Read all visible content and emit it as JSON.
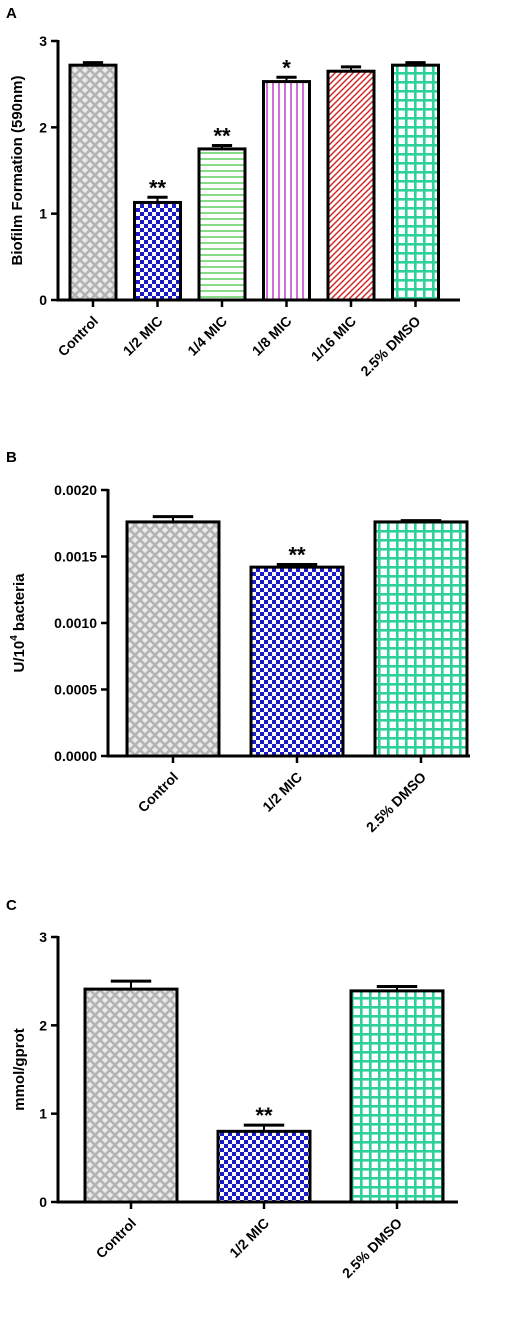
{
  "chart_data": [
    {
      "panel": "A",
      "type": "bar",
      "ylabel": "Biofilm Formation (590nm)",
      "ylim": [
        0,
        3
      ],
      "yticks": [
        "0",
        "1",
        "2",
        "3"
      ],
      "categories": [
        "Control",
        "1/2 MIC",
        "1/4 MIC",
        "1/8 MIC",
        "1/16 MIC",
        "2.5% DMSO"
      ],
      "values": [
        2.72,
        1.13,
        1.75,
        2.53,
        2.65,
        2.72
      ],
      "errors": [
        0.03,
        0.06,
        0.04,
        0.05,
        0.05,
        0.03
      ],
      "significance": [
        "",
        "**",
        "**",
        "*",
        "",
        ""
      ],
      "patterns": [
        "diamond-gray",
        "checker-blue",
        "hstripe-green",
        "vstripe-magenta",
        "diagonal-red",
        "grid-teal"
      ]
    },
    {
      "panel": "B",
      "type": "bar",
      "ylabel": "U/10",
      "ylabel_sup": "4",
      "ylabel_suffix": " bacteria",
      "ylim": [
        0,
        0.002
      ],
      "yticks": [
        "0.0000",
        "0.0005",
        "0.0010",
        "0.0015",
        "0.0020"
      ],
      "categories": [
        "Control",
        "1/2 MIC",
        "2.5% DMSO"
      ],
      "values": [
        0.00176,
        0.00142,
        0.00176
      ],
      "errors": [
        4e-05,
        2e-05,
        1e-05
      ],
      "significance": [
        "",
        "**",
        ""
      ],
      "patterns": [
        "diamond-gray",
        "checker-blue",
        "grid-teal"
      ]
    },
    {
      "panel": "C",
      "type": "bar",
      "ylabel": "mmol/gprot",
      "ylim": [
        0,
        3
      ],
      "yticks": [
        "0",
        "1",
        "2",
        "3"
      ],
      "categories": [
        "Control",
        "1/2 MIC",
        "2.5% DMSO"
      ],
      "values": [
        2.41,
        0.8,
        2.39
      ],
      "errors": [
        0.09,
        0.07,
        0.05
      ],
      "significance": [
        "",
        "**",
        ""
      ],
      "patterns": [
        "diamond-gray",
        "checker-blue",
        "grid-teal"
      ]
    }
  ],
  "colors": {
    "gray": "#b4b4b4",
    "blue": "#1a1ac8",
    "green": "#5fcf5f",
    "magenta": "#c040c8",
    "red": "#d02828",
    "teal": "#2ed19a"
  }
}
